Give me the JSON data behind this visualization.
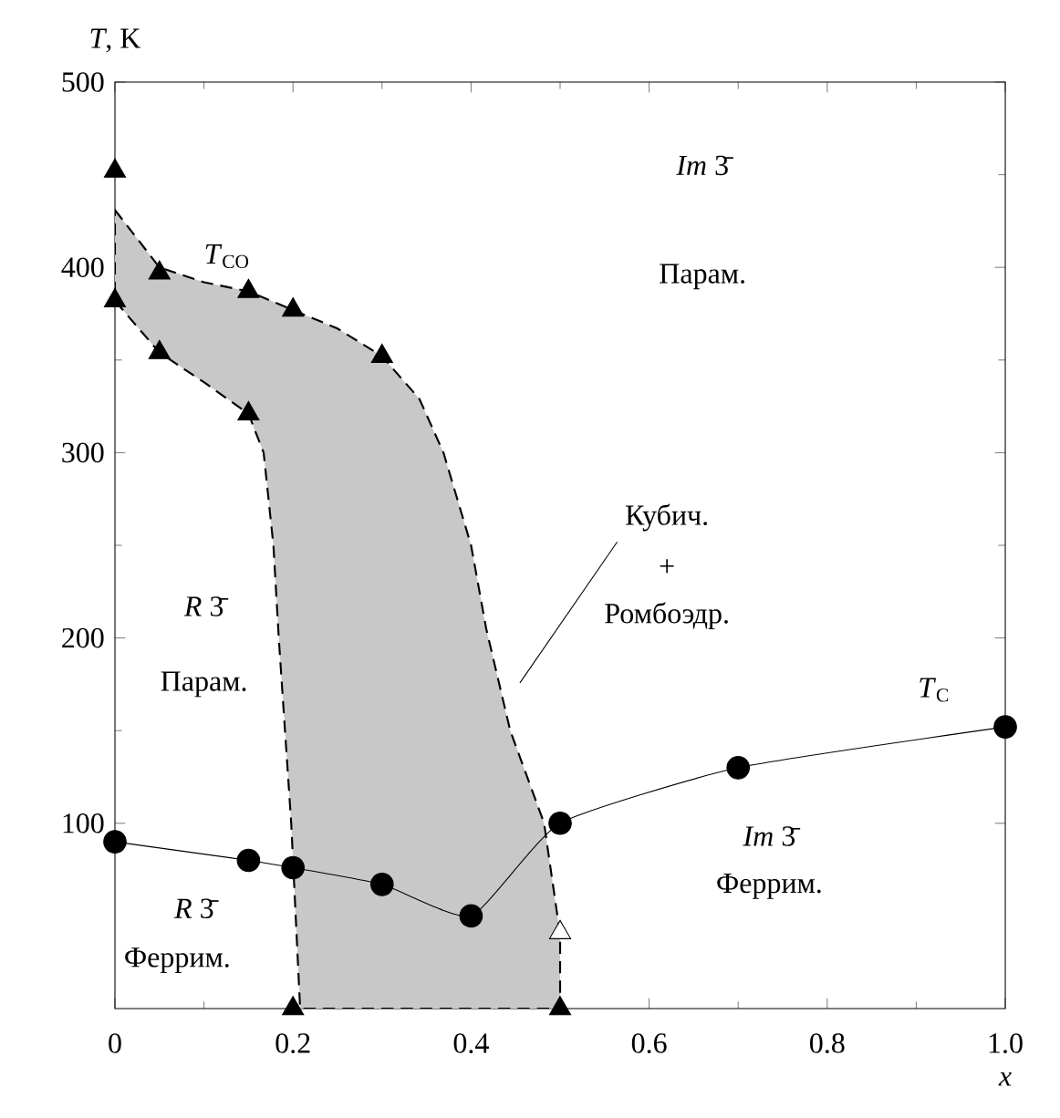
{
  "chart_data": {
    "type": "scatter",
    "xlabel": "*x*",
    "ylabel": "*T*, K",
    "xlim": [
      0,
      1
    ],
    "ylim": [
      0,
      500
    ],
    "xticks": [
      0,
      0.2,
      0.4,
      0.6,
      0.8,
      {
        "value": 1,
        "label": "1.0"
      }
    ],
    "yticks": [
      100,
      200,
      300,
      400,
      500
    ],
    "grid": false,
    "series": [
      {
        "type": "area",
        "color": "#c8c8c8",
        "line_style": "dashed",
        "x": [
          0,
          0.05,
          0.1,
          0.15,
          0.2,
          0.25,
          0.3,
          0.342,
          0.369,
          0.4,
          0.417,
          0.444,
          0.482,
          0.5,
          0.5,
          0.208,
          0.198,
          0.184,
          0.178,
          0.167,
          0.15,
          0.1,
          0.05,
          0
        ],
        "values": [
          431,
          400,
          392,
          387,
          377,
          367,
          352,
          329,
          300,
          250,
          205,
          150,
          100,
          40,
          0,
          0,
          100,
          200,
          250,
          300,
          321,
          338,
          354,
          382
        ]
      },
      {
        "type": "line",
        "color": "#000000",
        "marker": "circle",
        "line_style": "solid",
        "x": [
          0,
          0.15,
          0.2,
          0.3,
          0.4,
          0.5,
          0.7,
          1.0
        ],
        "values": [
          90,
          80,
          76,
          67,
          50,
          100,
          130,
          152
        ]
      },
      {
        "color": "#000000",
        "marker": "triangle",
        "x": [
          0,
          0,
          0.05,
          0.05,
          0.15,
          0.15,
          0.2,
          0.3,
          0.2,
          0.5
        ],
        "values": [
          452,
          382,
          397,
          354,
          387,
          321,
          377,
          352,
          0,
          0
        ]
      },
      {
        "color": "#ffffff",
        "marker": "triangle",
        "x": [
          0.5
        ],
        "values": [
          41
        ]
      }
    ],
    "annotations": [
      "*T*$_{CO}$",
      "*T*$_{C}$",
      "*Im* 3̄",
      "Парам.",
      "Кубич.",
      "+",
      "Ромбоэдр.",
      "*R* 3̄",
      "Парам.",
      "*R* 3̄",
      "Феррим.",
      "*Im* 3̄",
      "Феррим."
    ]
  }
}
